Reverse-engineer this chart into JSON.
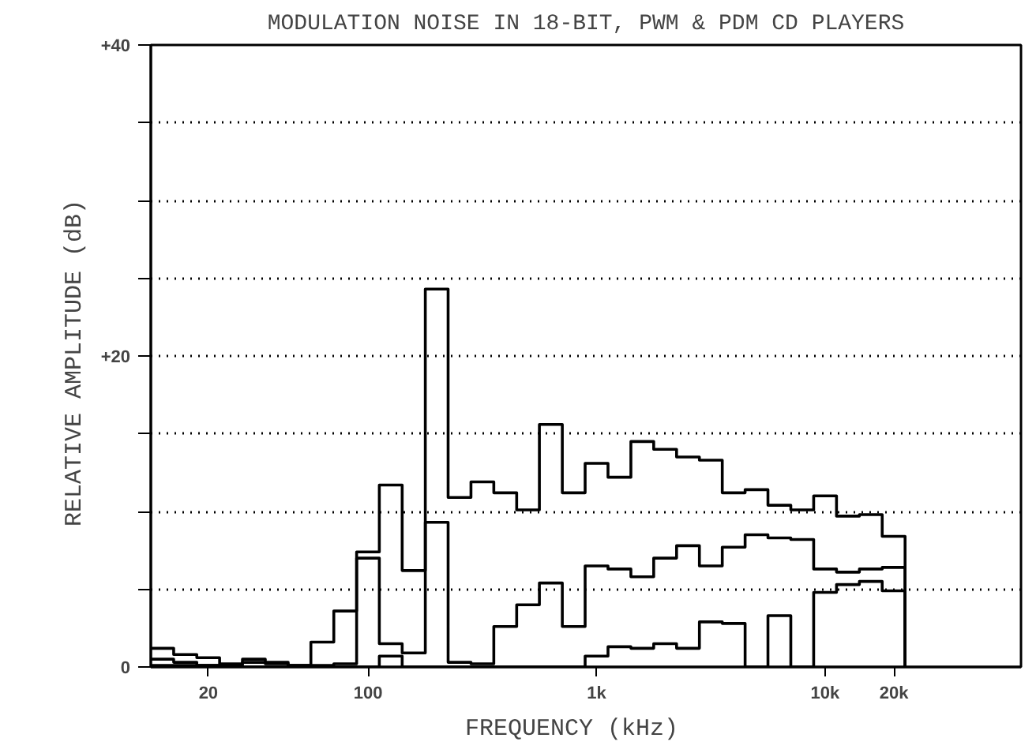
{
  "chart_data": {
    "type": "step",
    "title": "MODULATION NOISE IN 18-BIT, PWM & PDM CD PLAYERS",
    "xlabel": "FREQUENCY   (kHz)",
    "ylabel": "RELATIVE AMPLITUDE  (dB)",
    "x": [
      11.2,
      14.1,
      17.8,
      22.4,
      28.2,
      35.5,
      44.7,
      56.2,
      70.8,
      89.1,
      112,
      141,
      178,
      224,
      282,
      355,
      447,
      562,
      708,
      891,
      1122,
      1413,
      1778,
      2239,
      2818,
      3548,
      4467,
      5623,
      7079,
      8913,
      11220,
      14130,
      17780,
      22390
    ],
    "series": [
      {
        "color": "#000000",
        "values": [
          1.2,
          0.8,
          0.6,
          0.2,
          0.5,
          0.3,
          0.1,
          1.6,
          3.6,
          7.4,
          11.7,
          6.2,
          24.3,
          10.9,
          11.9,
          11.2,
          10.1,
          15.6,
          11.2,
          13.1,
          12.2,
          14.5,
          14.0,
          13.5,
          13.3,
          11.2,
          11.4,
          10.4,
          10.1,
          11.0,
          9.7,
          9.8,
          8.4,
          0
        ]
      },
      {
        "color": "#000000",
        "values": [
          0.5,
          0.3,
          0.1,
          0.1,
          0.3,
          0.2,
          0.1,
          0.1,
          0.2,
          7.0,
          1.5,
          0.9,
          9.3,
          0.3,
          0.2,
          2.6,
          4.0,
          5.4,
          2.6,
          6.5,
          6.3,
          5.8,
          7.0,
          7.8,
          6.5,
          7.7,
          8.5,
          8.3,
          8.2,
          6.3,
          6.1,
          6.3,
          6.4,
          0
        ]
      },
      {
        "color": "#000000",
        "values": [
          0.1,
          0.1,
          0.1,
          0,
          0,
          0,
          0,
          0,
          0,
          0,
          0.7,
          0,
          0,
          0,
          0,
          0,
          0,
          0,
          0,
          0.7,
          1.3,
          1.2,
          1.5,
          1.2,
          2.9,
          2.8,
          0,
          3.3,
          0,
          4.8,
          5.3,
          5.5,
          4.9,
          0
        ]
      }
    ],
    "log": "x",
    "xlim": [
      11.2,
      72000
    ],
    "xticks": [
      20,
      100,
      {
        "value": 1000,
        "label": "1k"
      },
      {
        "value": 10000,
        "label": "10k"
      },
      {
        "value": 20000,
        "label": "20k"
      }
    ],
    "ylim": [
      0,
      40
    ],
    "yticks": [
      0,
      {
        "value": 5,
        "label": null
      },
      {
        "value": 10,
        "label": null
      },
      {
        "value": 15,
        "label": null
      },
      {
        "value": 20,
        "label": "+20"
      },
      {
        "value": 25,
        "label": null
      },
      {
        "value": 30,
        "label": null
      },
      {
        "value": 35,
        "label": null
      },
      {
        "value": 40,
        "label": "+40"
      }
    ],
    "grid": "y"
  }
}
